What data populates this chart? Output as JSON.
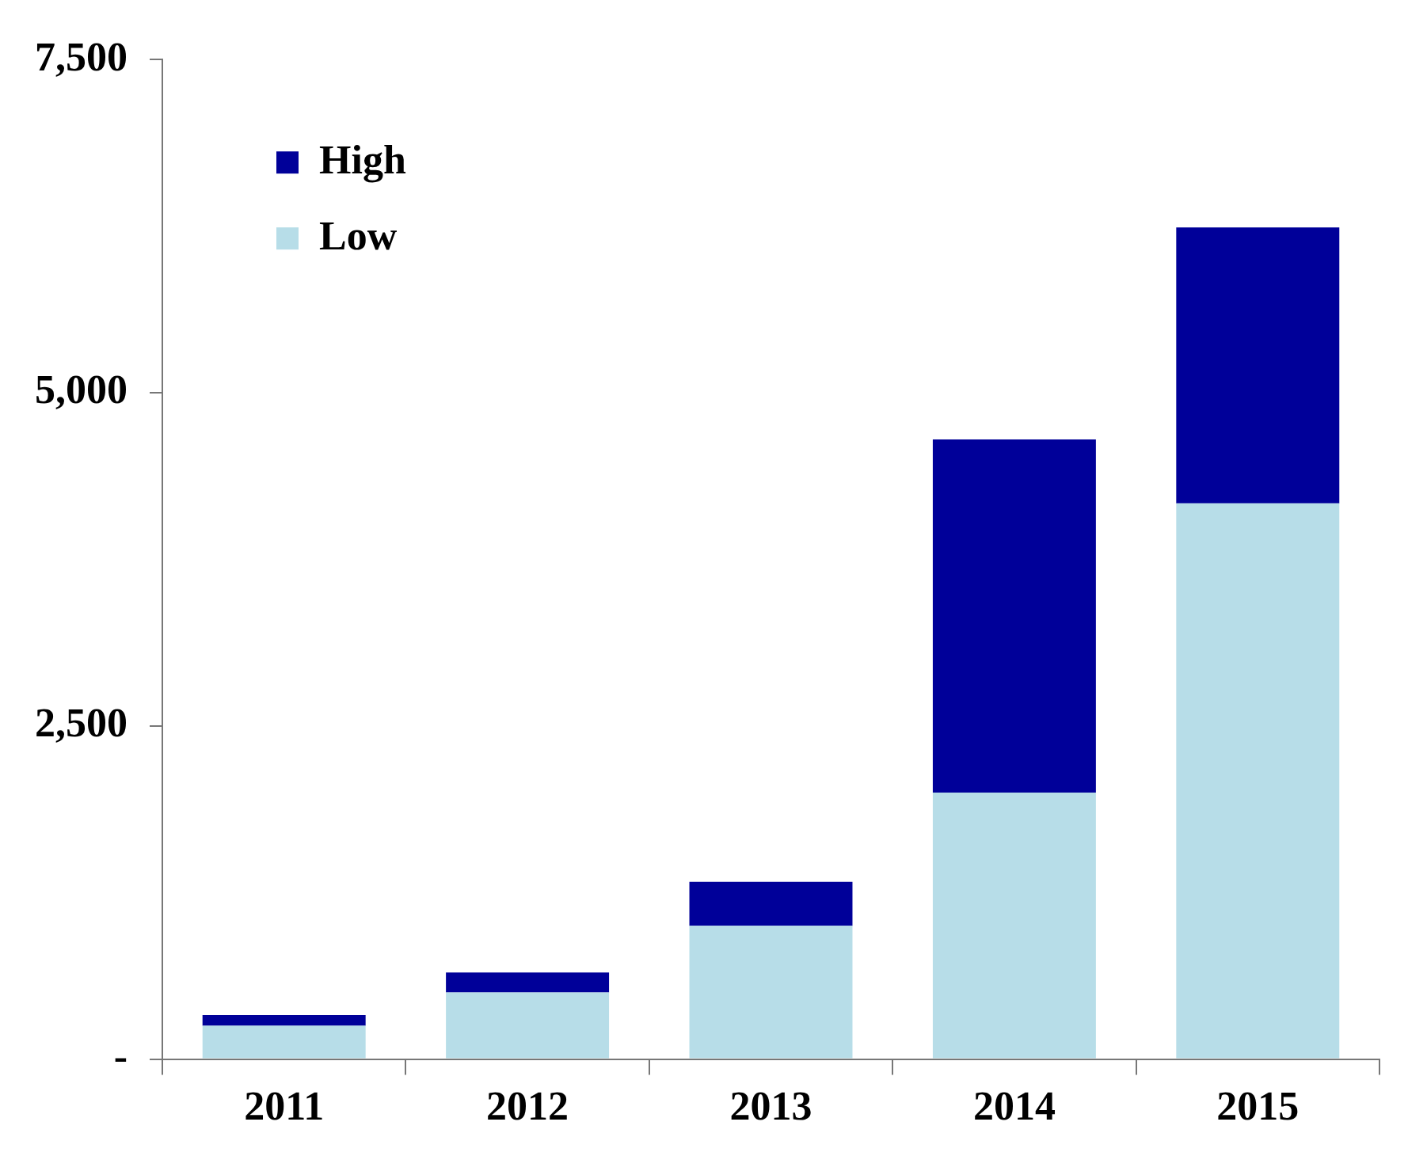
{
  "chart_data": {
    "type": "bar",
    "stacked": true,
    "categories": [
      "2011",
      "2012",
      "2013",
      "2014",
      "2015"
    ],
    "series": [
      {
        "name": "Low",
        "color": "#b7dde8",
        "values": [
          250,
          500,
          1000,
          2000,
          4170
        ]
      },
      {
        "name": "High",
        "color": "#000099",
        "values": [
          80,
          150,
          330,
          2650,
          2070
        ]
      }
    ],
    "ylim": [
      0,
      7500
    ],
    "yticks": [
      {
        "value": 0,
        "label": "-"
      },
      {
        "value": 2500,
        "label": "2,500"
      },
      {
        "value": 5000,
        "label": "5,000"
      },
      {
        "value": 7500,
        "label": "7,500"
      }
    ],
    "grid": false,
    "legend": "top left"
  }
}
